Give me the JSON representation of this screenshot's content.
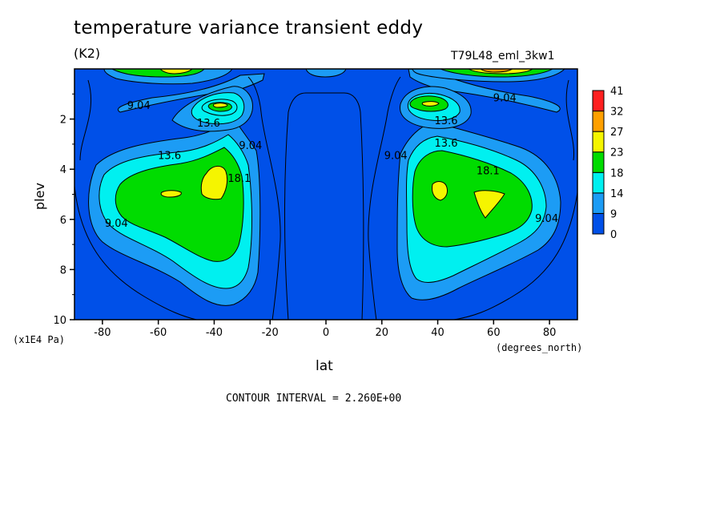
{
  "chart_data": {
    "type": "heatmap",
    "subtype": "filled-contour",
    "title": "temperature variance transient eddy",
    "units_label": "(K2)",
    "run_label": "T79L48_eml_3kw1",
    "xlabel": "lat",
    "x_units": "(degrees_north)",
    "ylabel": "plev",
    "y_units": "(x1E4 Pa)",
    "xlim": [
      -90,
      90
    ],
    "ylim": [
      0,
      10
    ],
    "y_inverted": true,
    "x_ticks": [
      -80,
      -60,
      -40,
      -20,
      0,
      20,
      40,
      60,
      80
    ],
    "y_ticks": [
      2,
      4,
      6,
      8,
      10
    ],
    "contour_interval_text": "CONTOUR INTERVAL = 2.260E+00",
    "colorbar": {
      "labels": [
        "0",
        "9",
        "14",
        "18",
        "23",
        "27",
        "32",
        "41"
      ],
      "colors": [
        "#0050e8",
        "#1c9cf5",
        "#00f0f0",
        "#00dc00",
        "#f5f500",
        "#ffa000",
        "#ff2020"
      ]
    },
    "contour_labels": [
      {
        "text": "9.04",
        "lat": -67,
        "plev": 1.6
      },
      {
        "text": "13.6",
        "lat": -42,
        "plev": 2.3
      },
      {
        "text": "9.04",
        "lat": -27,
        "plev": 3.2
      },
      {
        "text": "13.6",
        "lat": -56,
        "plev": 3.6
      },
      {
        "text": "18.1",
        "lat": -31,
        "plev": 4.5
      },
      {
        "text": "9.04",
        "lat": -75,
        "plev": 6.3
      },
      {
        "text": "9.04",
        "lat": 64,
        "plev": 1.3
      },
      {
        "text": "13.6",
        "lat": 43,
        "plev": 2.2
      },
      {
        "text": "13.6",
        "lat": 43,
        "plev": 3.1
      },
      {
        "text": "9.04",
        "lat": 25,
        "plev": 3.6
      },
      {
        "text": "18.1",
        "lat": 58,
        "plev": 4.2
      },
      {
        "text": "9.04",
        "lat": 79,
        "plev": 6.1
      }
    ]
  }
}
